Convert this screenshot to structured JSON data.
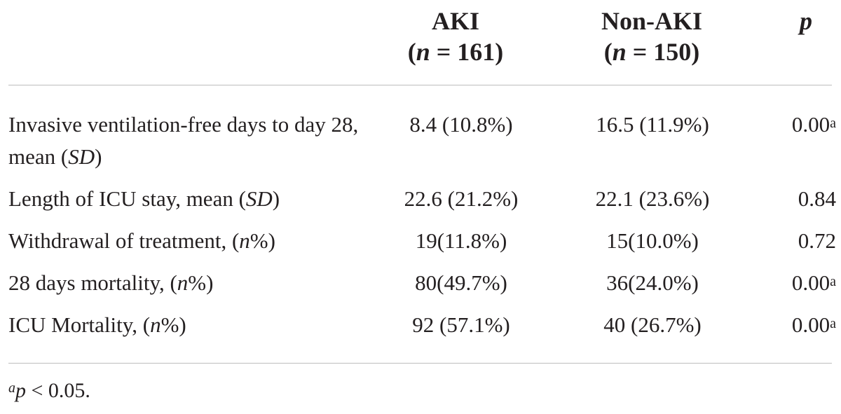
{
  "headers": {
    "group1": {
      "name": "AKI",
      "count": "(n = 161)"
    },
    "group2": {
      "name": "Non-AKI",
      "count": "(n = 150)"
    },
    "p_label": "p"
  },
  "rows": [
    {
      "label": "Invasive ventilation-free days to day 28, mean (SD)",
      "aki": "8.4 (10.8%)",
      "non_aki": "16.5 (11.9%)",
      "p": "0.00",
      "p_mark": "a"
    },
    {
      "label": "Length of ICU stay, mean (SD)",
      "aki": "22.6 (21.2%)",
      "non_aki": "22.1 (23.6%)",
      "p": "0.84",
      "p_mark": ""
    },
    {
      "label": "Withdrawal of treatment, (n%)",
      "aki": "19(11.8%)",
      "non_aki": "15(10.0%)",
      "p": "0.72",
      "p_mark": ""
    },
    {
      "label": "28 days mortality, (n%)",
      "aki": "80(49.7%)",
      "non_aki": "36(24.0%)",
      "p": "0.00",
      "p_mark": "a"
    },
    {
      "label": "ICU Mortality, (n%)",
      "aki": "92 (57.1%)",
      "non_aki": "40 (26.7%)",
      "p": "0.00",
      "p_mark": "a"
    }
  ],
  "footnote": "ap < 0.05."
}
